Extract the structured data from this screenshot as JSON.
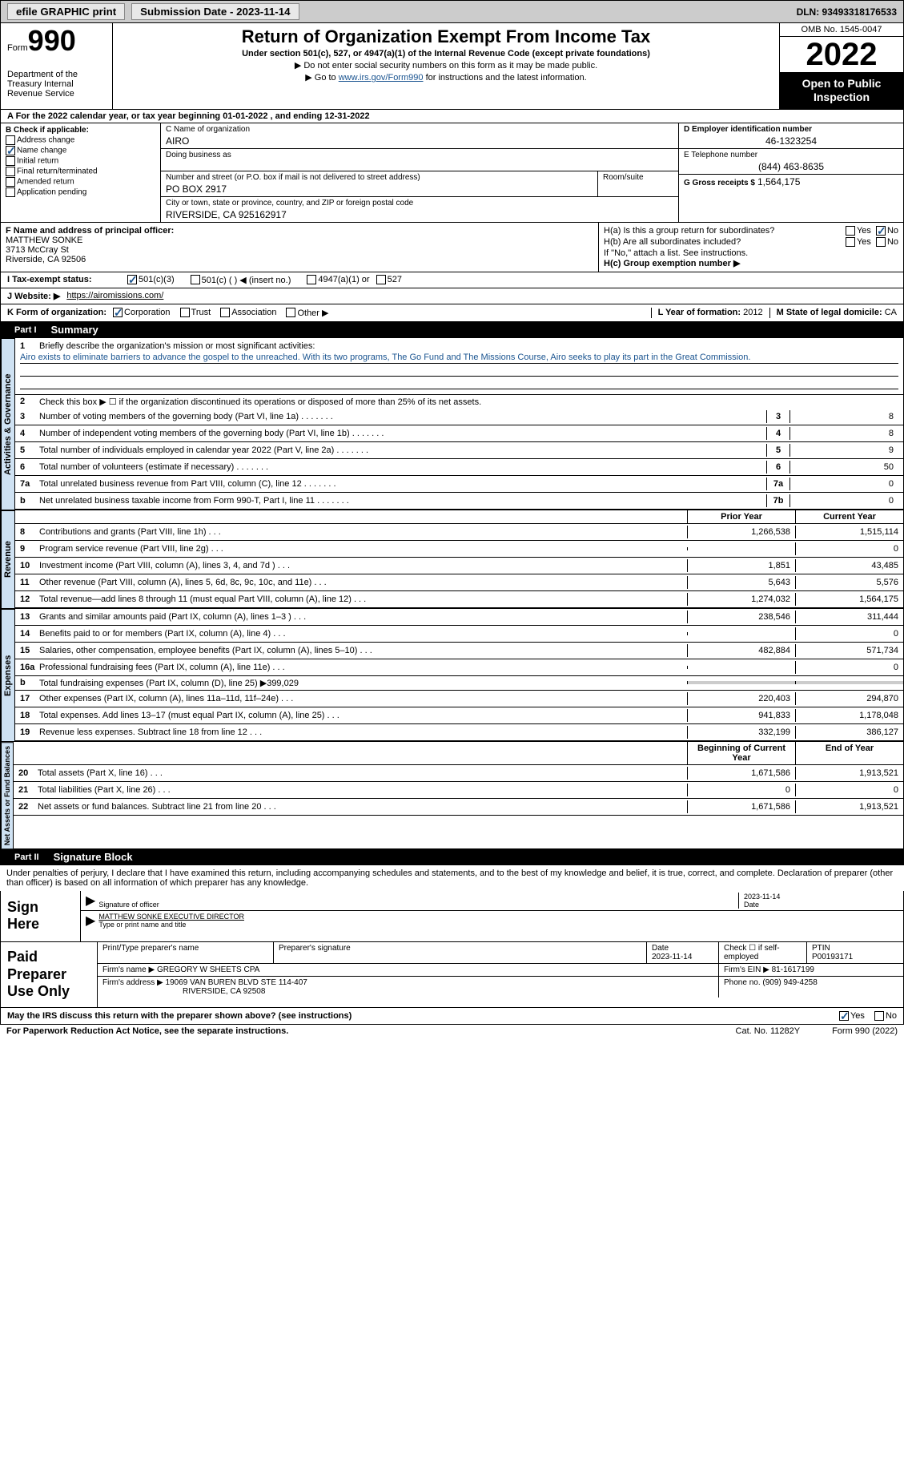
{
  "topbar": {
    "efile": "efile GRAPHIC print",
    "submission": "Submission Date - 2023-11-14",
    "dln": "DLN: 93493318176533"
  },
  "header": {
    "form_word": "Form",
    "form_num": "990",
    "dept": "Department of the Treasury\nInternal Revenue Service",
    "title": "Return of Organization Exempt From Income Tax",
    "subtitle": "Under section 501(c), 527, or 4947(a)(1) of the Internal Revenue Code (except private foundations)",
    "warn": "▶ Do not enter social security numbers on this form as it may be made public.",
    "goto": "▶ Go to",
    "link": "www.irs.gov/Form990",
    "goto2": "for instructions and the latest information.",
    "omb": "OMB No. 1545-0047",
    "year": "2022",
    "open": "Open to Public Inspection"
  },
  "section_a": "A For the 2022 calendar year, or tax year beginning 01-01-2022    , and ending 12-31-2022",
  "col_b": {
    "header": "B Check if applicable:",
    "opts": [
      "Address change",
      "Name change",
      "Initial return",
      "Final return/terminated",
      "Amended return",
      "Application pending"
    ],
    "checked": [
      false,
      true,
      false,
      false,
      false,
      false
    ]
  },
  "col_c": {
    "name_lbl": "C Name of organization",
    "name": "AIRO",
    "dba_lbl": "Doing business as",
    "dba": "",
    "addr_lbl": "Number and street (or P.O. box if mail is not delivered to street address)",
    "room_lbl": "Room/suite",
    "addr": "PO BOX 2917",
    "city_lbl": "City or town, state or province, country, and ZIP or foreign postal code",
    "city": "RIVERSIDE, CA  925162917"
  },
  "col_d": {
    "ein_lbl": "D Employer identification number",
    "ein": "46-1323254",
    "tel_lbl": "E Telephone number",
    "tel": "(844) 463-8635",
    "gross_lbl": "G Gross receipts $",
    "gross": "1,564,175"
  },
  "fg": {
    "f_lbl": "F Name and address of principal officer:",
    "f_name": "MATTHEW SONKE",
    "f_addr1": "3713 McCray St",
    "f_addr2": "Riverside, CA  92506",
    "ha": "H(a)  Is this a group return for subordinates?",
    "hb": "H(b)  Are all subordinates included?",
    "hb_note": "If \"No,\" attach a list. See instructions.",
    "hc": "H(c)  Group exemption number ▶",
    "yes": "Yes",
    "no": "No"
  },
  "i": {
    "lbl": "I    Tax-exempt status:",
    "opts": [
      "501(c)(3)",
      "501(c) (  ) ◀ (insert no.)",
      "4947(a)(1) or",
      "527"
    ]
  },
  "j": {
    "lbl": "J   Website: ▶",
    "val": "https://airomissions.com/"
  },
  "k": {
    "lbl": "K Form of organization:",
    "opts": [
      "Corporation",
      "Trust",
      "Association",
      "Other ▶"
    ],
    "l_lbl": "L Year of formation:",
    "l_val": "2012",
    "m_lbl": "M State of legal domicile:",
    "m_val": "CA"
  },
  "part1": {
    "num": "Part I",
    "title": "Summary"
  },
  "mission": {
    "num": "1",
    "lbl": "Briefly describe the organization's mission or most significant activities:",
    "text": "Airo exists to eliminate barriers to advance the gospel to the unreached. With its two programs, The Go Fund and The Missions Course, Airo seeks to play its part in the Great Commission."
  },
  "lines": {
    "l2": {
      "num": "2",
      "text": "Check this box ▶ ☐ if the organization discontinued its operations or disposed of more than 25% of its net assets."
    },
    "l3": {
      "num": "3",
      "text": "Number of voting members of the governing body (Part VI, line 1a)",
      "box": "3",
      "val": "8"
    },
    "l4": {
      "num": "4",
      "text": "Number of independent voting members of the governing body (Part VI, line 1b)",
      "box": "4",
      "val": "8"
    },
    "l5": {
      "num": "5",
      "text": "Total number of individuals employed in calendar year 2022 (Part V, line 2a)",
      "box": "5",
      "val": "9"
    },
    "l6": {
      "num": "6",
      "text": "Total number of volunteers (estimate if necessary)",
      "box": "6",
      "val": "50"
    },
    "l7a": {
      "num": "7a",
      "text": "Total unrelated business revenue from Part VIII, column (C), line 12",
      "box": "7a",
      "val": "0"
    },
    "l7b": {
      "num": "b",
      "text": "Net unrelated business taxable income from Form 990-T, Part I, line 11",
      "box": "7b",
      "val": "0"
    }
  },
  "colheaders": {
    "prior": "Prior Year",
    "current": "Current Year",
    "begin": "Beginning of Current Year",
    "end": "End of Year"
  },
  "revenue": [
    {
      "num": "8",
      "text": "Contributions and grants (Part VIII, line 1h)",
      "prior": "1,266,538",
      "curr": "1,515,114"
    },
    {
      "num": "9",
      "text": "Program service revenue (Part VIII, line 2g)",
      "prior": "",
      "curr": "0"
    },
    {
      "num": "10",
      "text": "Investment income (Part VIII, column (A), lines 3, 4, and 7d )",
      "prior": "1,851",
      "curr": "43,485"
    },
    {
      "num": "11",
      "text": "Other revenue (Part VIII, column (A), lines 5, 6d, 8c, 9c, 10c, and 11e)",
      "prior": "5,643",
      "curr": "5,576"
    },
    {
      "num": "12",
      "text": "Total revenue—add lines 8 through 11 (must equal Part VIII, column (A), line 12)",
      "prior": "1,274,032",
      "curr": "1,564,175"
    }
  ],
  "expenses": [
    {
      "num": "13",
      "text": "Grants and similar amounts paid (Part IX, column (A), lines 1–3 )",
      "prior": "238,546",
      "curr": "311,444"
    },
    {
      "num": "14",
      "text": "Benefits paid to or for members (Part IX, column (A), line 4)",
      "prior": "",
      "curr": "0"
    },
    {
      "num": "15",
      "text": "Salaries, other compensation, employee benefits (Part IX, column (A), lines 5–10)",
      "prior": "482,884",
      "curr": "571,734"
    },
    {
      "num": "16a",
      "text": "Professional fundraising fees (Part IX, column (A), line 11e)",
      "prior": "",
      "curr": "0"
    },
    {
      "num": "b",
      "text": "Total fundraising expenses (Part IX, column (D), line 25) ▶399,029",
      "shaded": true
    },
    {
      "num": "17",
      "text": "Other expenses (Part IX, column (A), lines 11a–11d, 11f–24e)",
      "prior": "220,403",
      "curr": "294,870"
    },
    {
      "num": "18",
      "text": "Total expenses. Add lines 13–17 (must equal Part IX, column (A), line 25)",
      "prior": "941,833",
      "curr": "1,178,048"
    },
    {
      "num": "19",
      "text": "Revenue less expenses. Subtract line 18 from line 12",
      "prior": "332,199",
      "curr": "386,127"
    }
  ],
  "netassets": [
    {
      "num": "20",
      "text": "Total assets (Part X, line 16)",
      "prior": "1,671,586",
      "curr": "1,913,521"
    },
    {
      "num": "21",
      "text": "Total liabilities (Part X, line 26)",
      "prior": "0",
      "curr": "0"
    },
    {
      "num": "22",
      "text": "Net assets or fund balances. Subtract line 21 from line 20",
      "prior": "1,671,586",
      "curr": "1,913,521"
    }
  ],
  "vert": {
    "act": "Activities & Governance",
    "rev": "Revenue",
    "exp": "Expenses",
    "net": "Net Assets or Fund Balances"
  },
  "part2": {
    "num": "Part II",
    "title": "Signature Block"
  },
  "sig": {
    "declare": "Under penalties of perjury, I declare that I have examined this return, including accompanying schedules and statements, and to the best of my knowledge and belief, it is true, correct, and complete. Declaration of preparer (other than officer) is based on all information of which preparer has any knowledge.",
    "sign_here": "Sign Here",
    "sig_officer": "Signature of officer",
    "date": "Date",
    "date_val": "2023-11-14",
    "name_title": "MATTHEW SONKE  EXECUTIVE DIRECTOR",
    "type_name": "Type or print name and title"
  },
  "paid": {
    "label": "Paid Preparer Use Only",
    "print_name_lbl": "Print/Type preparer's name",
    "prep_sig_lbl": "Preparer's signature",
    "date_lbl": "Date",
    "date_val": "2023-11-14",
    "check_lbl": "Check ☐ if self-employed",
    "ptin_lbl": "PTIN",
    "ptin": "P00193171",
    "firm_name_lbl": "Firm's name      ▶",
    "firm_name": "GREGORY W SHEETS CPA",
    "firm_ein_lbl": "Firm's EIN ▶",
    "firm_ein": "81-1617199",
    "firm_addr_lbl": "Firm's address ▶",
    "firm_addr1": "19069 VAN BUREN BLVD STE 114-407",
    "firm_addr2": "RIVERSIDE, CA  92508",
    "phone_lbl": "Phone no.",
    "phone": "(909) 949-4258"
  },
  "footer": {
    "discuss": "May the IRS discuss this return with the preparer shown above? (see instructions)",
    "yes": "Yes",
    "no": "No",
    "paperwork": "For Paperwork Reduction Act Notice, see the separate instructions.",
    "cat": "Cat. No. 11282Y",
    "form": "Form 990 (2022)"
  }
}
